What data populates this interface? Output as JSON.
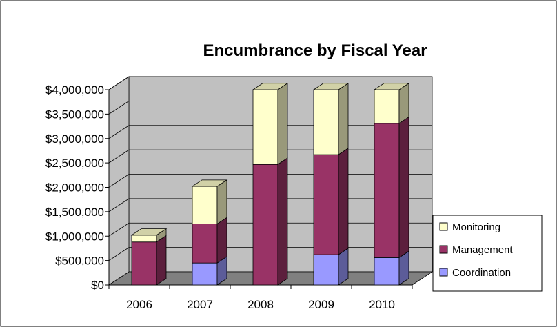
{
  "chart_data": {
    "type": "bar",
    "stacked": true,
    "three_d": true,
    "title": "Encumbrance by Fiscal Year",
    "xlabel": "",
    "ylabel": "",
    "categories": [
      "2006",
      "2007",
      "2008",
      "2009",
      "2010"
    ],
    "series": [
      {
        "name": "Coordination",
        "values": [
          0,
          450000,
          0,
          620000,
          560000
        ]
      },
      {
        "name": "Management",
        "values": [
          880000,
          800000,
          2470000,
          2050000,
          2750000
        ]
      },
      {
        "name": "Monitoring",
        "values": [
          140000,
          770000,
          1530000,
          1330000,
          690000
        ]
      }
    ],
    "ylim": [
      0,
      4000000
    ],
    "yticks": [
      0,
      500000,
      1000000,
      1500000,
      2000000,
      2500000,
      3000000,
      3500000,
      4000000
    ],
    "ytick_labels": [
      "$0",
      "$500,000",
      "$1,000,000",
      "$1,500,000",
      "$2,000,000",
      "$2,500,000",
      "$3,000,000",
      "$3,500,000",
      "$4,000,000"
    ],
    "grid": true,
    "legend_position": "right",
    "legend_order": [
      "Monitoring",
      "Management",
      "Coordination"
    ],
    "colors": {
      "Coordination": "#9999ff",
      "Management": "#993366",
      "Monitoring": "#ffffcc",
      "wall": "#c0c0c0",
      "floor": "#808080"
    }
  }
}
